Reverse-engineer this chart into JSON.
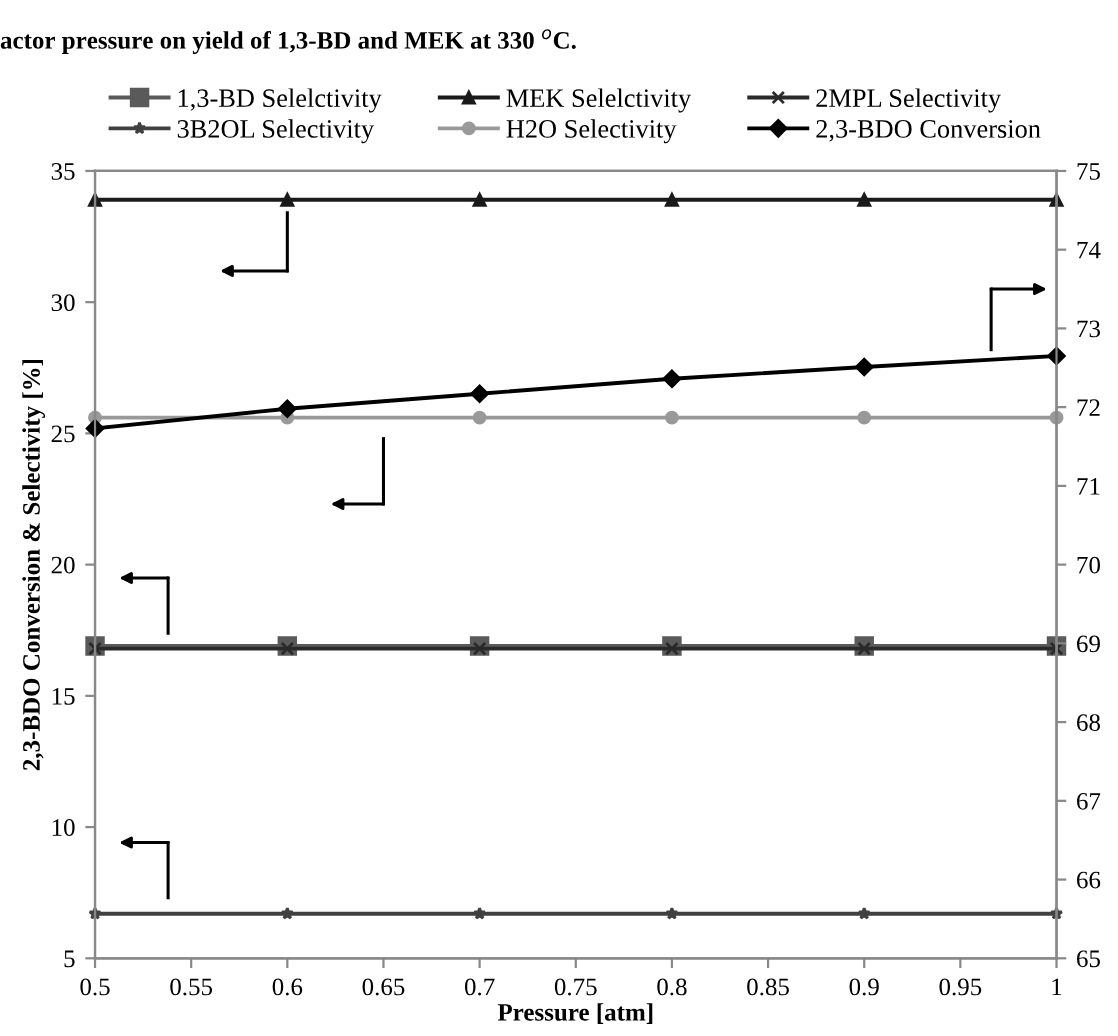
{
  "chart_data": {
    "type": "line",
    "title": "actor pressure on yield of 1,3-BD and MEK at 330 $^{o}$C.",
    "xlabel": "Pressure [atm]",
    "ylabel": "2,3-BDO Conversion & Selectivity [%]",
    "x": [
      0.5,
      0.6,
      0.7,
      0.8,
      0.9,
      1.0
    ],
    "xlim": [
      0.5,
      1
    ],
    "xticks": [
      0.5,
      0.55,
      0.6,
      0.65,
      0.7,
      0.75,
      0.8,
      0.85,
      0.9,
      0.95,
      1
    ],
    "ylim": [
      5,
      35
    ],
    "yticks": [
      5,
      10,
      15,
      20,
      25,
      30,
      35
    ],
    "y2lim": [
      65,
      75
    ],
    "y2ticks": [
      65,
      66,
      67,
      68,
      69,
      70,
      71,
      72,
      73,
      74,
      75
    ],
    "grid": false,
    "legend": "top",
    "line_style": "solid",
    "series": [
      {
        "name": "1,3-BD Selelctivity",
        "color": "#5a5a5a",
        "marker": "square",
        "values": [
          16.9,
          16.9,
          16.9,
          16.9,
          16.9,
          16.9
        ]
      },
      {
        "name": "MEK Selelctivity",
        "color": "#1a1a1a",
        "marker": "triangle",
        "values": [
          33.9,
          33.9,
          33.9,
          33.9,
          33.9,
          33.9
        ]
      },
      {
        "name": "2MPL Selectivity",
        "color": "#2a2a2a",
        "marker": "cross",
        "values": [
          16.8,
          16.8,
          16.8,
          16.8,
          16.8,
          16.8
        ]
      },
      {
        "name": "3B2OL Selectivity",
        "color": "#404040",
        "marker": "star",
        "values": [
          6.7,
          6.7,
          6.7,
          6.7,
          6.7,
          6.7
        ]
      },
      {
        "name": "H2O Selectivity",
        "color": "#999999",
        "marker": "circle",
        "values": [
          25.6,
          25.6,
          25.6,
          25.6,
          25.6,
          25.6
        ]
      },
      {
        "name": "2,3-BDO Conversion",
        "color": "#000000",
        "marker": "diamond",
        "axis": "y2",
        "values": [
          71.73,
          71.98,
          72.17,
          72.36,
          72.51,
          72.65
        ]
      }
    ]
  }
}
